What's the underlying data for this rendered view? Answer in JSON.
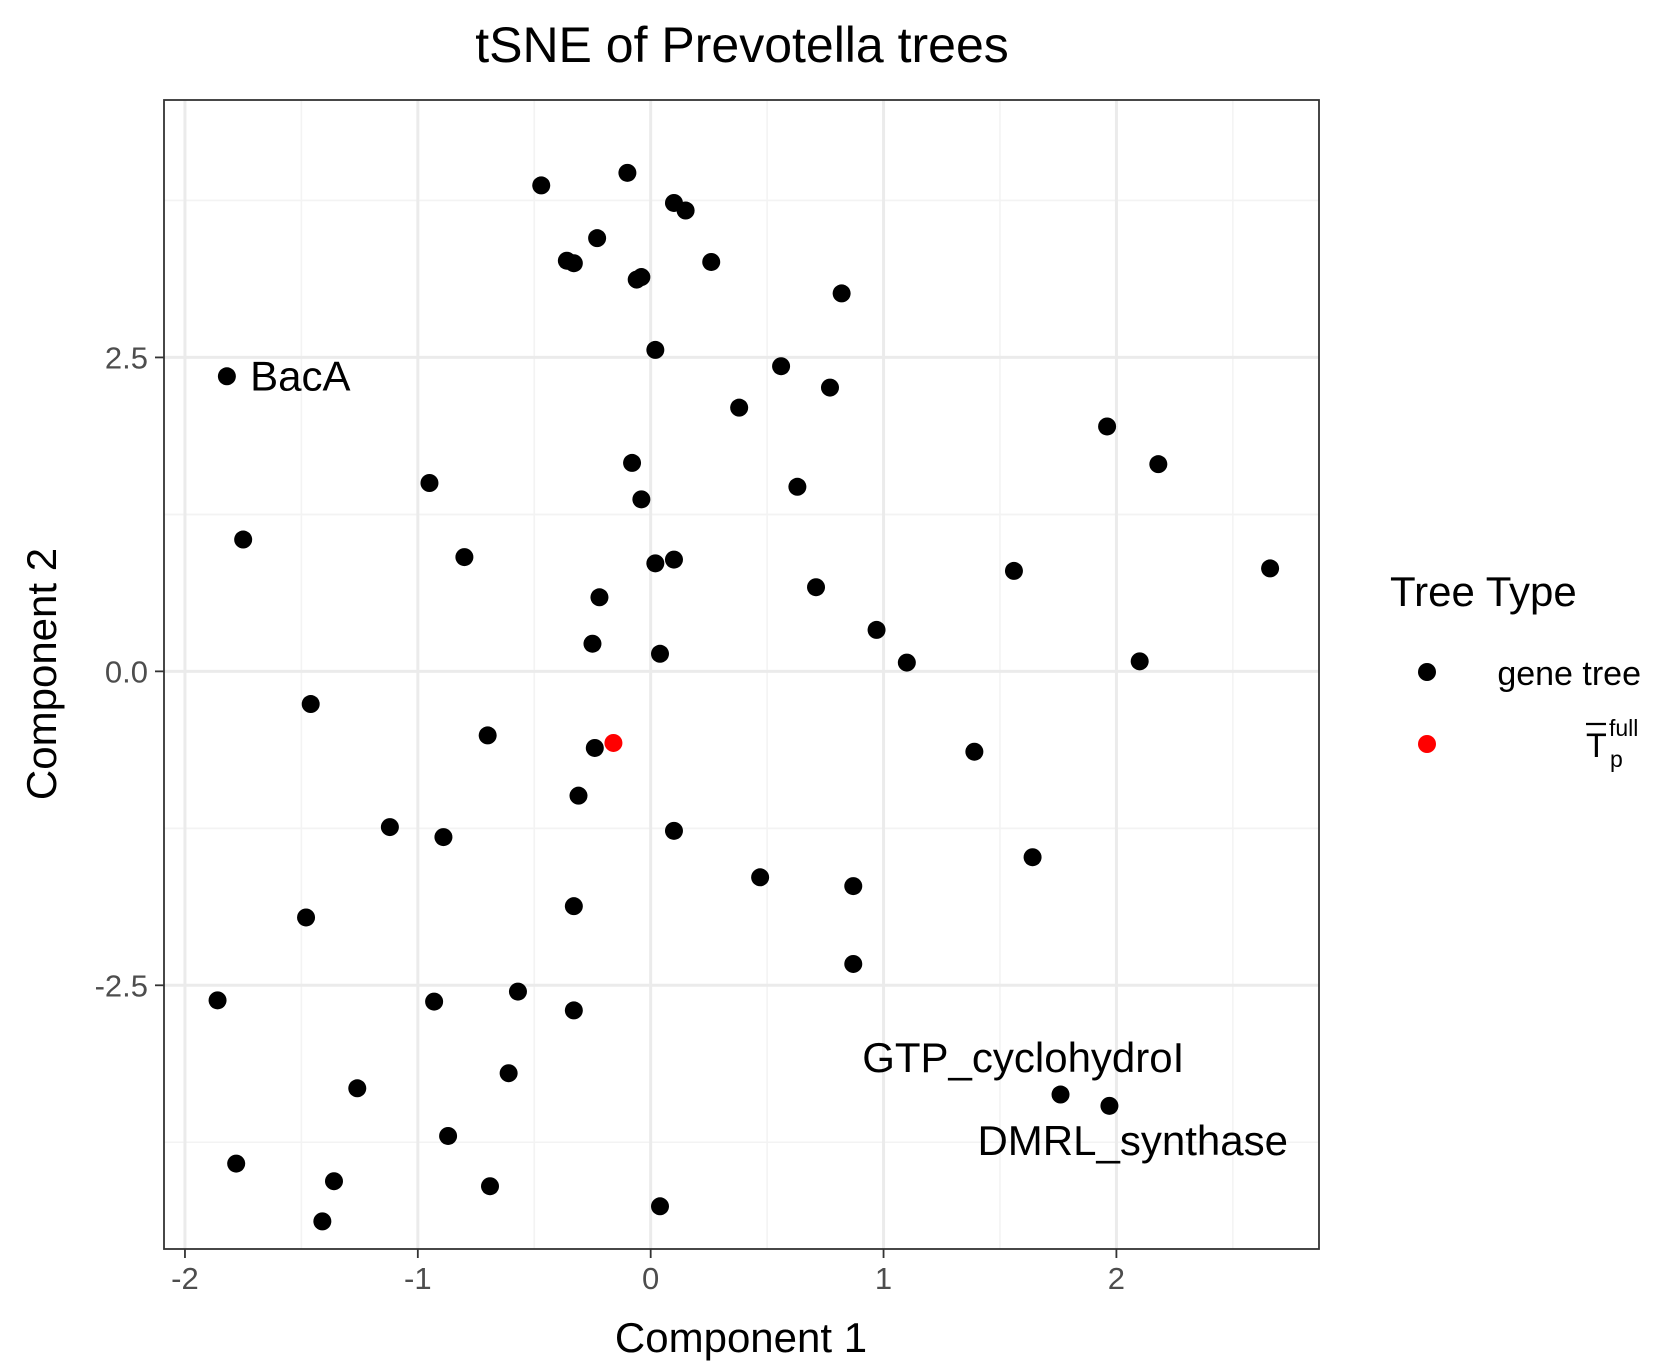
{
  "chart_data": {
    "type": "scatter",
    "title": "tSNE of Prevotella trees",
    "xlabel": "Component 1",
    "ylabel": "Component 2",
    "xlim": [
      -2.09,
      2.87
    ],
    "ylim": [
      -4.6,
      4.55
    ],
    "x_ticks": [
      -2,
      -1,
      0,
      1,
      2
    ],
    "x_tick_labels": [
      "-2",
      "-1",
      "0",
      "1",
      "2"
    ],
    "y_ticks": [
      -2.5,
      0.0,
      2.5
    ],
    "y_tick_labels": [
      "-2.5",
      "0.0",
      "2.5"
    ],
    "grid": true,
    "legend": {
      "title": "Tree Type",
      "position": "right",
      "entries": [
        {
          "label": "gene tree",
          "color": "#000000"
        },
        {
          "label": "T",
          "superscript": "full",
          "subscript": "p",
          "overline": true,
          "color": "#ff0000"
        }
      ]
    },
    "series": [
      {
        "key": "gene-tree",
        "color": "#000000",
        "points": [
          [
            -0.47,
            3.87
          ],
          [
            -0.1,
            3.97
          ],
          [
            0.1,
            3.73
          ],
          [
            0.15,
            3.67
          ],
          [
            -0.23,
            3.45
          ],
          [
            -0.36,
            3.27
          ],
          [
            -0.33,
            3.25
          ],
          [
            -0.06,
            3.12
          ],
          [
            -0.04,
            3.14
          ],
          [
            0.26,
            3.26
          ],
          [
            0.82,
            3.01
          ],
          [
            0.02,
            2.56
          ],
          [
            0.56,
            2.43
          ],
          [
            0.77,
            2.26
          ],
          [
            0.38,
            2.1
          ],
          [
            -1.82,
            2.35
          ],
          [
            1.96,
            1.95
          ],
          [
            2.18,
            1.65
          ],
          [
            -0.08,
            1.66
          ],
          [
            -0.95,
            1.5
          ],
          [
            0.63,
            1.47
          ],
          [
            -0.04,
            1.37
          ],
          [
            -1.75,
            1.05
          ],
          [
            -0.8,
            0.91
          ],
          [
            0.02,
            0.86
          ],
          [
            0.1,
            0.89
          ],
          [
            1.56,
            0.8
          ],
          [
            2.66,
            0.82
          ],
          [
            0.71,
            0.67
          ],
          [
            -0.22,
            0.59
          ],
          [
            0.97,
            0.33
          ],
          [
            -0.25,
            0.22
          ],
          [
            0.04,
            0.14
          ],
          [
            1.1,
            0.07
          ],
          [
            2.1,
            0.08
          ],
          [
            -1.46,
            -0.26
          ],
          [
            -0.7,
            -0.51
          ],
          [
            -0.24,
            -0.61
          ],
          [
            1.39,
            -0.64
          ],
          [
            -0.31,
            -0.99
          ],
          [
            -1.12,
            -1.24
          ],
          [
            -0.89,
            -1.32
          ],
          [
            0.1,
            -1.27
          ],
          [
            1.64,
            -1.48
          ],
          [
            0.47,
            -1.64
          ],
          [
            0.87,
            -1.71
          ],
          [
            -1.48,
            -1.96
          ],
          [
            -0.33,
            -1.87
          ],
          [
            0.87,
            -2.33
          ],
          [
            -1.86,
            -2.62
          ],
          [
            -0.93,
            -2.63
          ],
          [
            -0.57,
            -2.55
          ],
          [
            -0.33,
            -2.7
          ],
          [
            -0.61,
            -3.2
          ],
          [
            -1.26,
            -3.32
          ],
          [
            -0.87,
            -3.7
          ],
          [
            -1.78,
            -3.92
          ],
          [
            -1.36,
            -4.06
          ],
          [
            -0.69,
            -4.1
          ],
          [
            -1.41,
            -4.38
          ],
          [
            0.04,
            -4.26
          ],
          [
            1.76,
            -3.37
          ],
          [
            1.97,
            -3.46
          ]
        ]
      },
      {
        "key": "t-full",
        "color": "#ff0000",
        "points": [
          [
            -0.16,
            -0.57
          ]
        ]
      }
    ],
    "annotations": [
      {
        "text": "BacA",
        "x": -1.72,
        "y": 2.35,
        "anchor": "start"
      },
      {
        "text": "GTP_cyclohydroI",
        "x": 1.6,
        "y": -3.08,
        "anchor": "middle"
      },
      {
        "text": "DMRL_synthase",
        "x": 2.07,
        "y": -3.74,
        "anchor": "middle"
      }
    ]
  }
}
